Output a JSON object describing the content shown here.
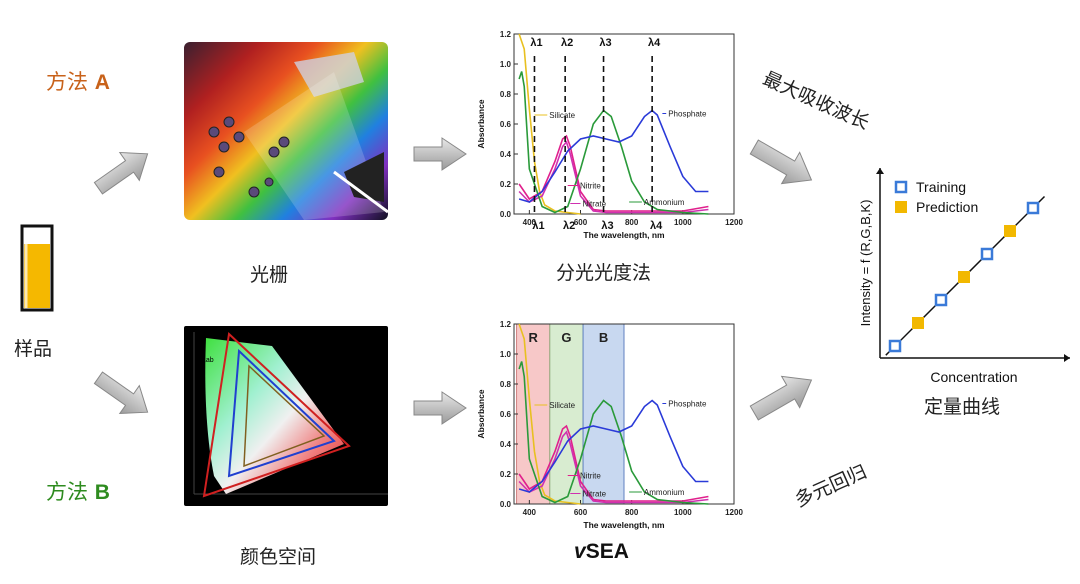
{
  "sample": {
    "label": "样品"
  },
  "method_a": {
    "text": "方法 ",
    "letter": "A",
    "color": "#c8621a"
  },
  "method_b": {
    "text": "方法 ",
    "letter": "B",
    "color": "#2e8b1f"
  },
  "grating": {
    "caption": "光栅"
  },
  "colorspace": {
    "caption": "颜色空间",
    "lab_label": "Lab"
  },
  "spectro": {
    "caption": "分光光度法"
  },
  "vsea": {
    "caption_prefix": "v",
    "caption_rest": "SEA"
  },
  "max_wavelength": {
    "text": "最大吸收波长"
  },
  "multivariate": {
    "text": "多元回归"
  },
  "calibration": {
    "caption": "定量曲线"
  },
  "spectrum_chart": {
    "ylabel": "Absorbance",
    "xlabel": "The wavelength, nm",
    "yticks": [
      "0.0",
      "0.2",
      "0.4",
      "0.6",
      "0.8",
      "1.0",
      "1.2"
    ],
    "xticks": [
      "400",
      "600",
      "800",
      "1000",
      "1200"
    ],
    "series": [
      "Silicate",
      "Nitrite",
      "Nitrate",
      "Ammonium",
      "Phosphate"
    ],
    "lambda_top": [
      "λ1",
      "λ2",
      "λ3",
      "λ4"
    ],
    "lambda_bottom": [
      "λ1",
      "λ2",
      "λ3",
      "λ4"
    ],
    "bands": [
      "R",
      "G",
      "B"
    ]
  },
  "chart_data": [
    {
      "type": "line",
      "title": "",
      "xlabel": "The wavelength, nm",
      "ylabel": "Absorbance",
      "xlim": [
        340,
        1200
      ],
      "ylim": [
        0,
        1.2
      ],
      "series": [
        {
          "name": "Silicate",
          "color": "#e8c020",
          "x": [
            360,
            380,
            400,
            420,
            440,
            460,
            500,
            600
          ],
          "y": [
            1.2,
            1.1,
            0.7,
            0.35,
            0.15,
            0.06,
            0.02,
            0.0
          ]
        },
        {
          "name": "Nitrite",
          "color": "#e0208c",
          "x": [
            360,
            400,
            450,
            500,
            530,
            545,
            560,
            600,
            650,
            700,
            1000,
            1100
          ],
          "y": [
            0.2,
            0.1,
            0.15,
            0.35,
            0.5,
            0.52,
            0.45,
            0.15,
            0.03,
            0.02,
            0.02,
            0.05
          ]
        },
        {
          "name": "Nitrate",
          "color": "#d030b0",
          "x": [
            360,
            400,
            450,
            500,
            530,
            545,
            560,
            600,
            650,
            700,
            1000,
            1100
          ],
          "y": [
            0.15,
            0.08,
            0.12,
            0.3,
            0.45,
            0.48,
            0.4,
            0.12,
            0.02,
            0.01,
            0.01,
            0.03
          ]
        },
        {
          "name": "Ammonium",
          "color": "#2a9a3a",
          "x": [
            360,
            370,
            380,
            400,
            450,
            500,
            550,
            600,
            650,
            690,
            720,
            760,
            800,
            850,
            900,
            1000,
            1100
          ],
          "y": [
            0.9,
            0.95,
            0.85,
            0.3,
            0.05,
            0.01,
            0.05,
            0.3,
            0.6,
            0.69,
            0.65,
            0.45,
            0.22,
            0.08,
            0.03,
            0.01,
            0.0
          ]
        },
        {
          "name": "Phosphate",
          "color": "#2a3ad8",
          "x": [
            360,
            400,
            450,
            500,
            550,
            600,
            650,
            700,
            750,
            800,
            850,
            880,
            900,
            950,
            1000,
            1050,
            1100
          ],
          "y": [
            0.1,
            0.08,
            0.15,
            0.28,
            0.42,
            0.5,
            0.52,
            0.5,
            0.48,
            0.52,
            0.65,
            0.69,
            0.66,
            0.45,
            0.25,
            0.15,
            0.15
          ]
        }
      ],
      "lambda_lines_nm": [
        420,
        540,
        690,
        880
      ]
    },
    {
      "type": "scatter",
      "title": "",
      "xlabel": "Concentration",
      "ylabel": "Intensity = f (R,G,B,K)",
      "series": [
        {
          "name": "Training",
          "color": "#3a7ad8",
          "x": [
            1,
            3,
            5,
            7
          ],
          "y": [
            1,
            3,
            5,
            7
          ]
        },
        {
          "name": "Prediction",
          "color": "#f2b800",
          "x": [
            2,
            4,
            6
          ],
          "y": [
            2,
            4,
            6
          ]
        }
      ]
    }
  ]
}
